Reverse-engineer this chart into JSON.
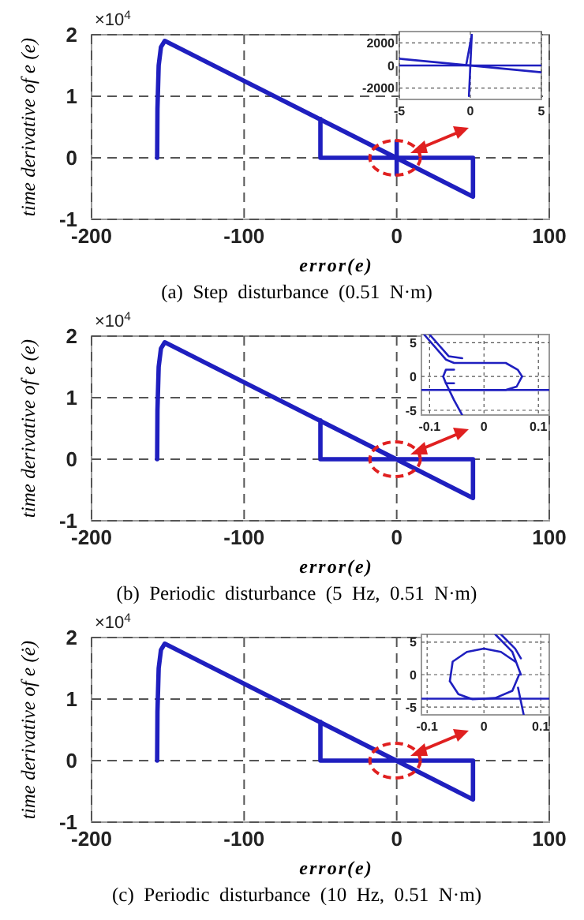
{
  "chart_data": [
    {
      "type": "line",
      "title": "(a)  Step  disturbance  (0.51  N·m)",
      "xlabel": "error(e)",
      "ylabel": "time derivative of e (e)",
      "annotations": [
        "×10$^{4}$"
      ],
      "xlim": [
        -200,
        100
      ],
      "ylim": [
        -1,
        2
      ],
      "xticks": [
        -200,
        -100,
        0,
        100
      ],
      "yticks": [
        -1,
        0,
        1,
        2
      ],
      "grid": true,
      "series": [
        {
          "color": "#1f1fbf",
          "x": [
            -157,
            -156.8,
            -156,
            -154.5,
            -152,
            50,
            50,
            -50,
            -50
          ],
          "values": [
            0,
            0.8,
            1.5,
            1.8,
            1.9,
            -0.63,
            0,
            0,
            0.63
          ]
        },
        {
          "color": "#1f1fbf",
          "x": [
            0,
            0,
            0
          ],
          "values": [
            0.27,
            -0.27,
            0
          ]
        }
      ]
    },
    {
      "type": "line",
      "xlim": [
        -5,
        5
      ],
      "ylim": [
        -3000,
        3000
      ],
      "xticks": [
        -5,
        0,
        5
      ],
      "yticks": [
        -2000,
        0,
        2000
      ],
      "grid": true,
      "series": [
        {
          "color": "#1f1fbf",
          "x": [
            -5,
            5
          ],
          "values": [
            600,
            -600
          ]
        },
        {
          "color": "#1f1fbf",
          "x": [
            -5,
            5
          ],
          "values": [
            0,
            0
          ]
        },
        {
          "color": "#1f1fbf",
          "x": [
            -0.3,
            0.1
          ],
          "values": [
            0,
            2700
          ]
        },
        {
          "color": "#1f1fbf",
          "x": [
            0.1,
            -0.1
          ],
          "values": [
            2700,
            -2700
          ]
        }
      ]
    },
    {
      "type": "line",
      "title": "(b)  Periodic  disturbance  (5  Hz,  0.51  N·m)",
      "xlabel": "error(e)",
      "ylabel": "time derivative of e (e)",
      "annotations": [
        "×10$^{4}$"
      ],
      "xlim": [
        -200,
        100
      ],
      "ylim": [
        -1,
        2
      ],
      "xticks": [
        -200,
        -100,
        0,
        100
      ],
      "yticks": [
        -1,
        0,
        1,
        2
      ],
      "grid": true,
      "series": [
        {
          "color": "#1f1fbf",
          "x": [
            -157,
            -156.8,
            -156,
            -154.5,
            -152,
            50,
            50,
            -50,
            -50
          ],
          "values": [
            0,
            0.8,
            1.5,
            1.8,
            1.9,
            -0.63,
            0,
            0,
            0.63
          ]
        }
      ]
    },
    {
      "type": "line",
      "xlim": [
        -0.115,
        0.12
      ],
      "ylim": [
        -5.7,
        6.2
      ],
      "xticks": [
        -0.1,
        0,
        0.1
      ],
      "yticks": [
        -5,
        0,
        5
      ],
      "grid": true,
      "series": [
        {
          "color": "#1f1fbf",
          "x": [
            -0.115,
            0.12
          ],
          "values": [
            -2,
            -2
          ]
        },
        {
          "color": "#1f1fbf",
          "x": [
            -0.11,
            -0.07,
            -0.055,
            0.04,
            0.062,
            0.07
          ],
          "values": [
            6.2,
            2.5,
            2,
            2,
            1,
            0
          ]
        },
        {
          "color": "#1f1fbf",
          "x": [
            -0.055,
            0.04,
            0.06,
            0.07
          ],
          "values": [
            -2,
            -2,
            -1.5,
            0
          ]
        },
        {
          "color": "#1f1fbf",
          "x": [
            -0.075,
            -0.07,
            -0.055
          ],
          "values": [
            0,
            1,
            1
          ]
        },
        {
          "color": "#1f1fbf",
          "x": [
            -0.075,
            -0.07,
            -0.055
          ],
          "values": [
            0,
            -1,
            -1
          ]
        },
        {
          "color": "#1f1fbf",
          "x": [
            -0.1,
            -0.065,
            -0.04
          ],
          "values": [
            6.2,
            3,
            2.7
          ]
        },
        {
          "color": "#1f1fbf",
          "x": [
            -0.07,
            -0.055,
            -0.04
          ],
          "values": [
            -1,
            -3.5,
            -5.7
          ]
        }
      ]
    },
    {
      "type": "line",
      "title": "(c)  Periodic  disturbance  (10  Hz,  0.51  N·m)",
      "xlabel": "error(e)",
      "ylabel": "time derivative of e (ė)",
      "annotations": [
        "×10$^{4}$"
      ],
      "xlim": [
        -200,
        100
      ],
      "ylim": [
        -1,
        2
      ],
      "xticks": [
        -200,
        -100,
        0,
        100
      ],
      "yticks": [
        -1,
        0,
        1,
        2
      ],
      "grid": true,
      "series": [
        {
          "color": "#1f1fbf",
          "x": [
            -157,
            -156.8,
            -156,
            -154.5,
            -152,
            50,
            50,
            -50,
            -50
          ],
          "values": [
            0,
            0.8,
            1.5,
            1.8,
            1.9,
            -0.63,
            0,
            0,
            0.63
          ]
        }
      ]
    },
    {
      "type": "line",
      "xlim": [
        -0.11,
        0.115
      ],
      "ylim": [
        -6.2,
        6.2
      ],
      "xticks": [
        -0.1,
        0,
        0.1
      ],
      "yticks": [
        -5,
        0,
        5
      ],
      "grid": true,
      "series": [
        {
          "color": "#1f1fbf",
          "x": [
            -0.11,
            0.115
          ],
          "values": [
            -3.7,
            -3.7
          ]
        },
        {
          "color": "#1f1fbf",
          "x": [
            -0.06,
            -0.055,
            -0.03,
            0,
            0.03,
            0.055
          ],
          "values": [
            -1,
            2,
            3.5,
            4,
            3.5,
            2
          ]
        },
        {
          "color": "#1f1fbf",
          "x": [
            -0.06,
            -0.045,
            -0.02,
            0.02,
            0.05,
            0.062
          ],
          "values": [
            -1,
            -3,
            -3.8,
            -3.6,
            -2.5,
            0
          ]
        },
        {
          "color": "#1f1fbf",
          "x": [
            0.02,
            0.05,
            0.065
          ],
          "values": [
            6.2,
            3.5,
            0
          ]
        },
        {
          "color": "#1f1fbf",
          "x": [
            0.06,
            0.07
          ],
          "values": [
            -2,
            -6.2
          ]
        },
        {
          "color": "#1f1fbf",
          "x": [
            0.03,
            0.055,
            0.065
          ],
          "values": [
            6.2,
            4,
            2.5
          ]
        }
      ]
    }
  ]
}
